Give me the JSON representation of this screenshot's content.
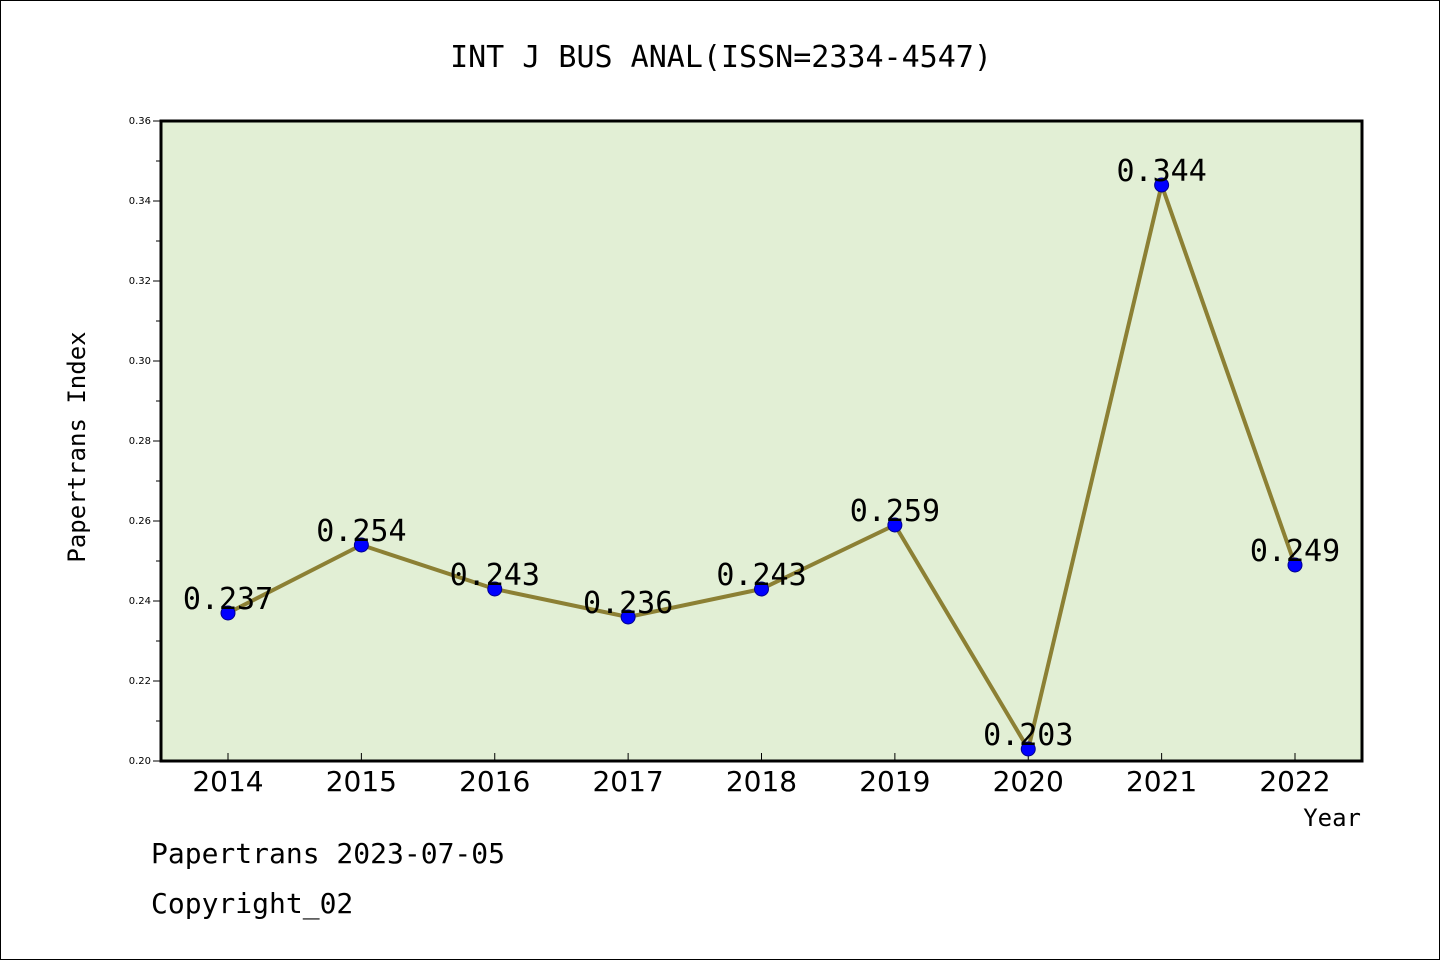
{
  "chart_data": {
    "type": "line",
    "title": "INT J BUS ANAL(ISSN=2334-4547)",
    "xlabel": "Year",
    "ylabel": "Papertrans Index",
    "categories": [
      "2014",
      "2015",
      "2016",
      "2017",
      "2018",
      "2019",
      "2020",
      "2021",
      "2022"
    ],
    "values": [
      0.237,
      0.254,
      0.243,
      0.236,
      0.243,
      0.259,
      0.203,
      0.344,
      0.249
    ],
    "data_labels": [
      "0.237",
      "0.254",
      "0.243",
      "0.236",
      "0.243",
      "0.259",
      "0.203",
      "0.344",
      "0.249"
    ],
    "ylim": [
      0.2,
      0.36
    ],
    "yticks": [
      0.2,
      0.22,
      0.24,
      0.26,
      0.28,
      0.3,
      0.32,
      0.34,
      0.36
    ],
    "ytick_labels": [
      "0.20",
      "0.22",
      "0.24",
      "0.26",
      "0.28",
      "0.30",
      "0.32",
      "0.34",
      "0.36"
    ],
    "grid": false,
    "colors": {
      "plot_background": "#e2efd5",
      "line": "#8c8034",
      "marker": "#0000ff",
      "marker_edge": "#00008b"
    }
  },
  "footer": {
    "line1": "Papertrans 2023-07-05",
    "line2": "Copyright_02"
  }
}
